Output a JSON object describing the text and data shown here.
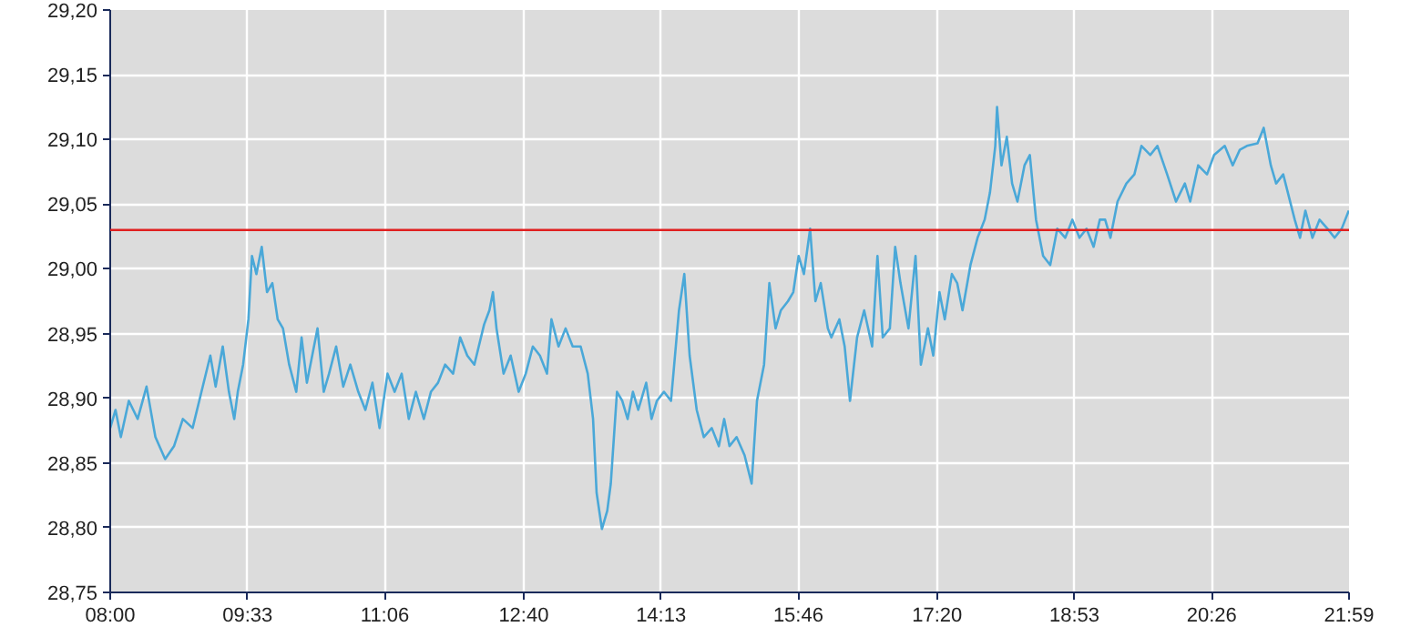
{
  "chart_data": {
    "type": "line",
    "x": [
      8.0,
      8.06,
      8.12,
      8.21,
      8.31,
      8.41,
      8.51,
      8.62,
      8.72,
      8.82,
      8.93,
      9.03,
      9.13,
      9.19,
      9.27,
      9.34,
      9.4,
      9.44,
      9.5,
      9.56,
      9.6,
      9.65,
      9.71,
      9.77,
      9.83,
      9.89,
      9.95,
      10.02,
      10.1,
      10.16,
      10.22,
      10.28,
      10.34,
      10.41,
      10.47,
      10.55,
      10.63,
      10.71,
      10.8,
      10.88,
      10.96,
      11.04,
      11.13,
      11.21,
      11.29,
      11.37,
      11.45,
      11.54,
      11.62,
      11.7,
      11.78,
      11.87,
      11.95,
      12.03,
      12.11,
      12.22,
      12.28,
      12.32,
      12.36,
      12.44,
      12.52,
      12.61,
      12.69,
      12.77,
      12.85,
      12.93,
      12.98,
      13.06,
      13.14,
      13.22,
      13.31,
      13.39,
      13.45,
      13.49,
      13.55,
      13.61,
      13.65,
      13.72,
      13.78,
      13.84,
      13.9,
      13.96,
      14.05,
      14.11,
      14.17,
      14.25,
      14.33,
      14.42,
      14.48,
      14.54,
      14.62,
      14.7,
      14.79,
      14.87,
      14.93,
      14.99,
      15.07,
      15.16,
      15.24,
      15.3,
      15.38,
      15.44,
      15.51,
      15.57,
      15.65,
      15.71,
      15.77,
      15.83,
      15.9,
      15.96,
      16.02,
      16.1,
      16.14,
      16.23,
      16.29,
      16.35,
      16.43,
      16.51,
      16.6,
      16.66,
      16.72,
      16.8,
      16.86,
      16.92,
      17.01,
      17.09,
      17.15,
      17.23,
      17.29,
      17.36,
      17.42,
      17.5,
      17.56,
      17.62,
      17.71,
      17.79,
      17.87,
      17.93,
      17.99,
      18.01,
      18.06,
      18.12,
      18.18,
      18.24,
      18.32,
      18.38,
      18.45,
      18.53,
      18.61,
      18.69,
      18.78,
      18.86,
      18.94,
      19.02,
      19.1,
      19.17,
      19.23,
      19.29,
      19.37,
      19.47,
      19.56,
      19.64,
      19.74,
      19.82,
      19.93,
      20.03,
      20.13,
      20.19,
      20.28,
      20.38,
      20.46,
      20.58,
      20.67,
      20.75,
      20.83,
      20.95,
      21.02,
      21.1,
      21.16,
      21.24,
      21.37,
      21.43,
      21.49,
      21.57,
      21.65,
      21.74,
      21.82,
      21.9,
      21.98
    ],
    "series": [
      {
        "color": "#4aa8d8",
        "values": [
          28.877,
          28.891,
          28.87,
          28.898,
          28.884,
          28.909,
          28.87,
          28.853,
          28.863,
          28.884,
          28.877,
          28.905,
          28.933,
          28.909,
          28.94,
          28.905,
          28.884,
          28.905,
          28.926,
          28.961,
          29.01,
          28.996,
          29.017,
          28.982,
          28.989,
          28.961,
          28.954,
          28.926,
          28.905,
          28.947,
          28.912,
          28.933,
          28.954,
          28.905,
          28.919,
          28.94,
          28.909,
          28.926,
          28.905,
          28.891,
          28.912,
          28.877,
          28.919,
          28.905,
          28.919,
          28.884,
          28.905,
          28.884,
          28.905,
          28.912,
          28.926,
          28.919,
          28.947,
          28.933,
          28.926,
          28.957,
          28.968,
          28.982,
          28.954,
          28.919,
          28.933,
          28.905,
          28.919,
          28.94,
          28.933,
          28.919,
          28.961,
          28.94,
          28.954,
          28.94,
          28.94,
          28.919,
          28.884,
          28.827,
          28.799,
          28.813,
          28.834,
          28.905,
          28.898,
          28.884,
          28.905,
          28.891,
          28.912,
          28.884,
          28.898,
          28.905,
          28.898,
          28.968,
          28.996,
          28.933,
          28.891,
          28.87,
          28.877,
          28.863,
          28.884,
          28.863,
          28.87,
          28.856,
          28.834,
          28.898,
          28.926,
          28.989,
          28.954,
          28.968,
          28.975,
          28.982,
          29.01,
          28.996,
          29.031,
          28.975,
          28.989,
          28.954,
          28.947,
          28.961,
          28.94,
          28.898,
          28.947,
          28.968,
          28.94,
          29.01,
          28.947,
          28.954,
          29.017,
          28.989,
          28.954,
          29.01,
          28.926,
          28.954,
          28.933,
          28.982,
          28.961,
          28.996,
          28.989,
          28.968,
          29.003,
          29.024,
          29.038,
          29.059,
          29.095,
          29.125,
          29.08,
          29.102,
          29.066,
          29.052,
          29.08,
          29.088,
          29.038,
          29.01,
          29.003,
          29.031,
          29.024,
          29.038,
          29.024,
          29.031,
          29.017,
          29.038,
          29.038,
          29.024,
          29.052,
          29.066,
          29.073,
          29.095,
          29.088,
          29.095,
          29.073,
          29.052,
          29.066,
          29.052,
          29.08,
          29.073,
          29.088,
          29.095,
          29.08,
          29.092,
          29.095,
          29.097,
          29.109,
          29.08,
          29.066,
          29.073,
          29.038,
          29.024,
          29.045,
          29.024,
          29.038,
          29.031,
          29.024,
          29.031,
          29.045
        ]
      }
    ],
    "xlim": [
      8,
      21.983
    ],
    "xticks": [
      {
        "value": 8,
        "label": "08:00"
      },
      {
        "value": 9.55,
        "label": "09:33"
      },
      {
        "value": 11.1,
        "label": "11:06"
      },
      {
        "value": 12.667,
        "label": "12:40"
      },
      {
        "value": 14.217,
        "label": "14:13"
      },
      {
        "value": 15.767,
        "label": "15:46"
      },
      {
        "value": 17.333,
        "label": "17:20"
      },
      {
        "value": 18.883,
        "label": "18:53"
      },
      {
        "value": 20.433,
        "label": "20:26"
      },
      {
        "value": 21.983,
        "label": "21:59"
      }
    ],
    "ylim": [
      28.75,
      29.2
    ],
    "yticks": [
      {
        "value": 28.75,
        "label": "28,75"
      },
      {
        "value": 28.8,
        "label": "28,80"
      },
      {
        "value": 28.85,
        "label": "28,85"
      },
      {
        "value": 28.9,
        "label": "28,90"
      },
      {
        "value": 28.95,
        "label": "28,95"
      },
      {
        "value": 29.0,
        "label": "29,00"
      },
      {
        "value": 29.05,
        "label": "29,05"
      },
      {
        "value": 29.1,
        "label": "29,10"
      },
      {
        "value": 29.15,
        "label": "29,15"
      },
      {
        "value": 29.2,
        "label": "29,20"
      }
    ],
    "ref_lines": [
      {
        "axis": "y",
        "value": 29.03,
        "color": "#e02020"
      }
    ],
    "grid": true,
    "line_style": "solid",
    "marker": "none"
  }
}
